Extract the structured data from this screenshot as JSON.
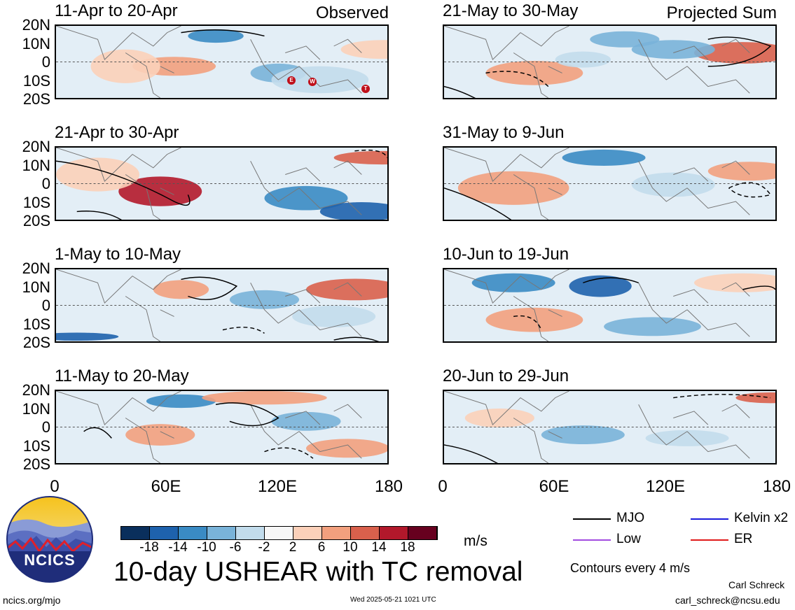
{
  "panels": [
    {
      "title": "11-Apr to 20-Apr",
      "corner": "Observed"
    },
    {
      "title": "21-May to 30-May",
      "corner": "Projected Sum"
    },
    {
      "title": "21-Apr to 30-Apr",
      "corner": ""
    },
    {
      "title": "31-May to 9-Jun",
      "corner": ""
    },
    {
      "title": "1-May to 10-May",
      "corner": ""
    },
    {
      "title": "10-Jun to 19-Jun",
      "corner": ""
    },
    {
      "title": "11-May to 20-May",
      "corner": ""
    },
    {
      "title": "20-Jun to 29-Jun",
      "corner": ""
    }
  ],
  "lat_labels": [
    "20N",
    "10N",
    "0",
    "10S",
    "20S"
  ],
  "lon_labels": [
    "0",
    "60E",
    "120E",
    "180"
  ],
  "tc_markers": [
    "E",
    "W",
    "T"
  ],
  "colorbar": {
    "ticks": [
      "-18",
      "-14",
      "-10",
      "-6",
      "-2",
      "2",
      "6",
      "10",
      "14",
      "18"
    ],
    "colors": [
      "#0a2f5c",
      "#1e62ad",
      "#3a8bc4",
      "#79b3d9",
      "#c2dcec",
      "#f7f7f7",
      "#fbd0b9",
      "#f2a07e",
      "#d9604c",
      "#b2182b",
      "#67001f"
    ],
    "units": "m/s"
  },
  "legend": [
    {
      "label": "MJO",
      "color": "#000000"
    },
    {
      "label": "Kelvin x2",
      "color": "#1a1adb"
    },
    {
      "label": "Low",
      "color": "#a24be0"
    },
    {
      "label": "ER",
      "color": "#e01a1a"
    }
  ],
  "contour_note": "Contours every 4 m/s",
  "main_title": "10-day USHEAR with TC removal",
  "logo_text": "NCICS",
  "footer": {
    "url": "ncics.org/mjo",
    "timestamp": "Wed 2025-05-21 1021 UTC",
    "author": "Carl Schreck",
    "email": "carl_schreck@ncsu.edu"
  }
}
